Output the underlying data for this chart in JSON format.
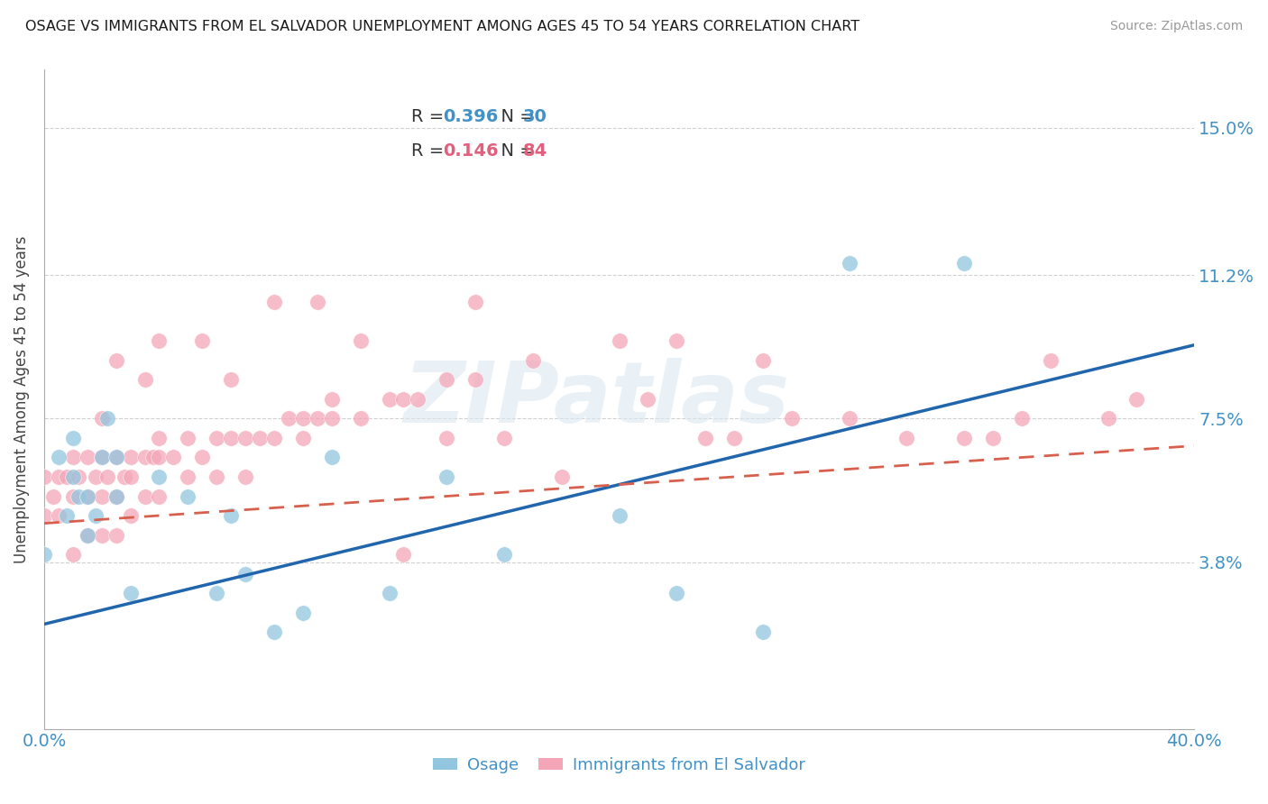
{
  "title": "OSAGE VS IMMIGRANTS FROM EL SALVADOR UNEMPLOYMENT AMONG AGES 45 TO 54 YEARS CORRELATION CHART",
  "source": "Source: ZipAtlas.com",
  "ylabel": "Unemployment Among Ages 45 to 54 years",
  "xlim": [
    0.0,
    0.4
  ],
  "ylim": [
    -0.005,
    0.165
  ],
  "yticks": [
    0.038,
    0.075,
    0.112,
    0.15
  ],
  "ytick_labels": [
    "3.8%",
    "7.5%",
    "11.2%",
    "15.0%"
  ],
  "legend_blue_R": "0.396",
  "legend_blue_N": "30",
  "legend_pink_R": "0.146",
  "legend_pink_N": "84",
  "blue_color": "#92c5de",
  "pink_color": "#f4a6b8",
  "blue_line_color": "#2166ac",
  "pink_line_color": "#d6604d",
  "watermark_text": "ZIPatlas",
  "blue_scatter_x": [
    0.0,
    0.005,
    0.008,
    0.01,
    0.01,
    0.012,
    0.015,
    0.015,
    0.018,
    0.02,
    0.022,
    0.025,
    0.025,
    0.03,
    0.04,
    0.05,
    0.06,
    0.065,
    0.07,
    0.08,
    0.09,
    0.1,
    0.12,
    0.14,
    0.16,
    0.2,
    0.22,
    0.25,
    0.28,
    0.32
  ],
  "blue_scatter_y": [
    0.04,
    0.065,
    0.05,
    0.06,
    0.07,
    0.055,
    0.045,
    0.055,
    0.05,
    0.065,
    0.075,
    0.055,
    0.065,
    0.03,
    0.06,
    0.055,
    0.03,
    0.05,
    0.035,
    0.02,
    0.025,
    0.065,
    0.03,
    0.06,
    0.04,
    0.05,
    0.03,
    0.02,
    0.115,
    0.115
  ],
  "pink_scatter_x": [
    0.0,
    0.0,
    0.003,
    0.005,
    0.005,
    0.008,
    0.01,
    0.01,
    0.01,
    0.012,
    0.015,
    0.015,
    0.015,
    0.018,
    0.02,
    0.02,
    0.02,
    0.022,
    0.025,
    0.025,
    0.025,
    0.028,
    0.03,
    0.03,
    0.03,
    0.035,
    0.035,
    0.038,
    0.04,
    0.04,
    0.04,
    0.045,
    0.05,
    0.05,
    0.055,
    0.06,
    0.06,
    0.065,
    0.07,
    0.07,
    0.075,
    0.08,
    0.085,
    0.09,
    0.09,
    0.095,
    0.1,
    0.1,
    0.11,
    0.12,
    0.125,
    0.13,
    0.14,
    0.14,
    0.15,
    0.16,
    0.17,
    0.18,
    0.2,
    0.21,
    0.22,
    0.23,
    0.24,
    0.25,
    0.26,
    0.28,
    0.3,
    0.32,
    0.33,
    0.34,
    0.35,
    0.37,
    0.38,
    0.15,
    0.055,
    0.08,
    0.095,
    0.11,
    0.125,
    0.065,
    0.04,
    0.025,
    0.035,
    0.02
  ],
  "pink_scatter_y": [
    0.05,
    0.06,
    0.055,
    0.05,
    0.06,
    0.06,
    0.04,
    0.055,
    0.065,
    0.06,
    0.045,
    0.055,
    0.065,
    0.06,
    0.045,
    0.055,
    0.065,
    0.06,
    0.045,
    0.055,
    0.065,
    0.06,
    0.05,
    0.06,
    0.065,
    0.055,
    0.065,
    0.065,
    0.055,
    0.065,
    0.07,
    0.065,
    0.06,
    0.07,
    0.065,
    0.06,
    0.07,
    0.07,
    0.06,
    0.07,
    0.07,
    0.07,
    0.075,
    0.07,
    0.075,
    0.075,
    0.075,
    0.08,
    0.075,
    0.08,
    0.08,
    0.08,
    0.085,
    0.07,
    0.085,
    0.07,
    0.09,
    0.06,
    0.095,
    0.08,
    0.095,
    0.07,
    0.07,
    0.09,
    0.075,
    0.075,
    0.07,
    0.07,
    0.07,
    0.075,
    0.09,
    0.075,
    0.08,
    0.105,
    0.095,
    0.105,
    0.105,
    0.095,
    0.04,
    0.085,
    0.095,
    0.09,
    0.085,
    0.075
  ],
  "blue_line_start_y": 0.022,
  "blue_line_end_y": 0.094,
  "pink_line_start_y": 0.048,
  "pink_line_end_y": 0.068
}
